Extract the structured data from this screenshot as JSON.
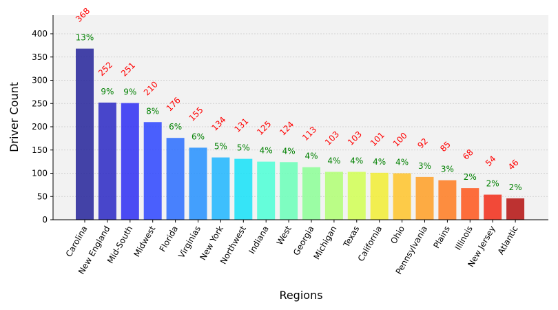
{
  "chart_data": {
    "type": "bar",
    "categories": [
      "Carolina",
      "New England",
      "Mid-South",
      "Midwest",
      "Florida",
      "Virginias",
      "New York",
      "Northwest",
      "Indiana",
      "West",
      "Georgia",
      "Michigan",
      "Texas",
      "California",
      "Ohio",
      "Pennsylvania",
      "Plains",
      "Illinois",
      "New Jersey",
      "Atlantic"
    ],
    "values": [
      368,
      252,
      251,
      210,
      176,
      155,
      134,
      131,
      125,
      124,
      113,
      103,
      103,
      101,
      100,
      92,
      85,
      68,
      54,
      46
    ],
    "value_labels": [
      "368",
      "252",
      "251",
      "210",
      "176",
      "155",
      "134",
      "131",
      "125",
      "124",
      "113",
      "103",
      "103",
      "101",
      "100",
      "92",
      "85",
      "68",
      "54",
      "46"
    ],
    "percent_labels": [
      "13%",
      "9%",
      "9%",
      "8%",
      "6%",
      "6%",
      "5%",
      "5%",
      "4%",
      "4%",
      "4%",
      "4%",
      "4%",
      "4%",
      "4%",
      "3%",
      "3%",
      "2%",
      "2%",
      "2%"
    ],
    "xlabel": "Regions",
    "ylabel": "Driver Count",
    "ylim": [
      0,
      440
    ],
    "yticks": [
      0,
      50,
      100,
      150,
      200,
      250,
      300,
      350,
      400
    ],
    "grid": true,
    "colors": {
      "bars": [
        "#25239a",
        "#2a28c4",
        "#2e2ef3",
        "#2d45ff",
        "#2a6dff",
        "#2591ff",
        "#1eb6ff",
        "#15e2f8",
        "#4cffd6",
        "#6affb8",
        "#8cff96",
        "#b0ff73",
        "#d1ff53",
        "#f2ed34",
        "#ffc42a",
        "#ff9f25",
        "#ff7b20",
        "#ff561b",
        "#f22b18",
        "#b4100f"
      ],
      "value_label": "#ff0000",
      "percent_label": "#008000",
      "plot_background": "#f2f2f2",
      "grid": "#c8c8c8"
    }
  }
}
